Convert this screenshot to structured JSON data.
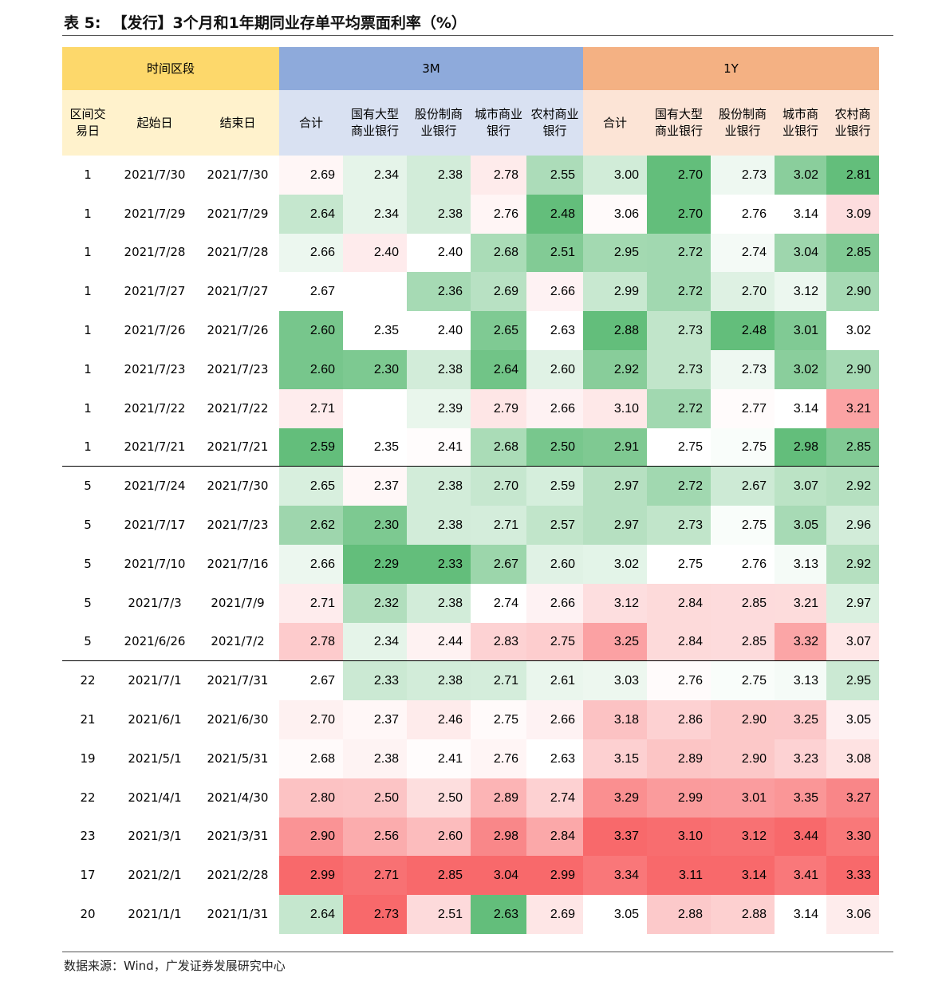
{
  "header": {
    "label": "表 5:",
    "title": "【发行】3个月和1年期同业存单平均票面利率（%）"
  },
  "table": {
    "group_headers": [
      "时间区段",
      "3M",
      "1Y"
    ],
    "columns": [
      "区间交易日",
      "起始日",
      "结束日",
      "合计",
      "国有大型商业银行",
      "股份制商业银行",
      "城市商业银行",
      "农村商业银行",
      "合计",
      "国有大型商业银行",
      "股份制商业银行",
      "城市商业银行",
      "农村商业银行"
    ],
    "groups": [
      [
        [
          "1",
          "2021/7/30",
          "2021/7/30",
          "2.69",
          "2.34",
          "2.38",
          "2.78",
          "2.55",
          "3.00",
          "2.70",
          "2.73",
          "3.02",
          "2.81"
        ],
        [
          "1",
          "2021/7/29",
          "2021/7/29",
          "2.64",
          "2.34",
          "2.38",
          "2.76",
          "2.48",
          "3.06",
          "2.70",
          "2.76",
          "3.14",
          "3.09"
        ],
        [
          "1",
          "2021/7/28",
          "2021/7/28",
          "2.66",
          "2.40",
          "2.40",
          "2.68",
          "2.51",
          "2.95",
          "2.72",
          "2.74",
          "3.04",
          "2.85"
        ],
        [
          "1",
          "2021/7/27",
          "2021/7/27",
          "2.67",
          null,
          "2.36",
          "2.69",
          "2.66",
          "2.99",
          "2.72",
          "2.70",
          "3.12",
          "2.90"
        ],
        [
          "1",
          "2021/7/26",
          "2021/7/26",
          "2.60",
          "2.35",
          "2.40",
          "2.65",
          "2.63",
          "2.88",
          "2.73",
          "2.48",
          "3.01",
          "3.02"
        ],
        [
          "1",
          "2021/7/23",
          "2021/7/23",
          "2.60",
          "2.30",
          "2.38",
          "2.64",
          "2.60",
          "2.92",
          "2.73",
          "2.73",
          "3.02",
          "2.90"
        ],
        [
          "1",
          "2021/7/22",
          "2021/7/22",
          "2.71",
          null,
          "2.39",
          "2.79",
          "2.66",
          "3.10",
          "2.72",
          "2.77",
          "3.14",
          "3.21"
        ],
        [
          "1",
          "2021/7/21",
          "2021/7/21",
          "2.59",
          "2.35",
          "2.41",
          "2.68",
          "2.50",
          "2.91",
          "2.75",
          "2.75",
          "2.98",
          "2.85"
        ]
      ],
      [
        [
          "5",
          "2021/7/24",
          "2021/7/30",
          "2.65",
          "2.37",
          "2.38",
          "2.70",
          "2.59",
          "2.97",
          "2.72",
          "2.67",
          "3.07",
          "2.92"
        ],
        [
          "5",
          "2021/7/17",
          "2021/7/23",
          "2.62",
          "2.30",
          "2.38",
          "2.71",
          "2.57",
          "2.97",
          "2.73",
          "2.75",
          "3.05",
          "2.96"
        ],
        [
          "5",
          "2021/7/10",
          "2021/7/16",
          "2.66",
          "2.29",
          "2.33",
          "2.67",
          "2.60",
          "3.02",
          "2.75",
          "2.76",
          "3.13",
          "2.92"
        ],
        [
          "5",
          "2021/7/3",
          "2021/7/9",
          "2.71",
          "2.32",
          "2.38",
          "2.74",
          "2.66",
          "3.12",
          "2.84",
          "2.85",
          "3.21",
          "2.97"
        ],
        [
          "5",
          "2021/6/26",
          "2021/7/2",
          "2.78",
          "2.34",
          "2.44",
          "2.83",
          "2.75",
          "3.25",
          "2.84",
          "2.85",
          "3.32",
          "3.07"
        ]
      ],
      [
        [
          "22",
          "2021/7/1",
          "2021/7/31",
          "2.67",
          "2.33",
          "2.38",
          "2.71",
          "2.61",
          "3.03",
          "2.76",
          "2.75",
          "3.13",
          "2.95"
        ],
        [
          "21",
          "2021/6/1",
          "2021/6/30",
          "2.70",
          "2.37",
          "2.46",
          "2.75",
          "2.66",
          "3.18",
          "2.86",
          "2.90",
          "3.25",
          "3.05"
        ],
        [
          "19",
          "2021/5/1",
          "2021/5/31",
          "2.68",
          "2.38",
          "2.41",
          "2.76",
          "2.63",
          "3.15",
          "2.89",
          "2.90",
          "3.23",
          "3.08"
        ],
        [
          "22",
          "2021/4/1",
          "2021/4/30",
          "2.80",
          "2.50",
          "2.50",
          "2.89",
          "2.74",
          "3.29",
          "2.99",
          "3.01",
          "3.35",
          "3.27"
        ],
        [
          "23",
          "2021/3/1",
          "2021/3/31",
          "2.90",
          "2.56",
          "2.60",
          "2.98",
          "2.84",
          "3.37",
          "3.10",
          "3.12",
          "3.44",
          "3.30"
        ],
        [
          "17",
          "2021/2/1",
          "2021/2/28",
          "2.99",
          "2.71",
          "2.85",
          "3.04",
          "2.99",
          "3.34",
          "3.11",
          "3.14",
          "3.41",
          "3.33"
        ],
        [
          "20",
          "2021/1/1",
          "2021/1/31",
          "2.64",
          "2.73",
          "2.51",
          "2.63",
          "2.69",
          "3.05",
          "2.88",
          "2.88",
          "3.14",
          "3.06"
        ]
      ]
    ]
  },
  "footer": {
    "source": "数据来源：Wind，广发证券发展研究中心"
  }
}
